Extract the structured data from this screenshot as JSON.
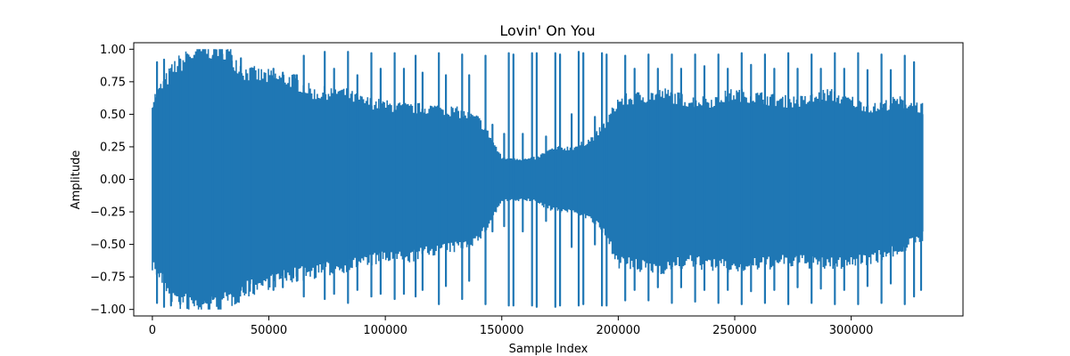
{
  "chart_data": {
    "type": "line",
    "title": "Lovin' On You",
    "xlabel": "Sample Index",
    "ylabel": "Amplitude",
    "xlim": [
      -8000,
      348000
    ],
    "ylim": [
      -1.05,
      1.05
    ],
    "x_ticks": [
      0,
      50000,
      100000,
      150000,
      200000,
      250000,
      300000
    ],
    "x_tick_labels": [
      "0",
      "50000",
      "100000",
      "150000",
      "200000",
      "250000",
      "300000"
    ],
    "y_ticks": [
      1.0,
      0.75,
      0.5,
      0.25,
      0.0,
      -0.25,
      -0.5,
      -0.75,
      -1.0
    ],
    "y_tick_labels": [
      "1.00",
      "0.75",
      "0.50",
      "0.25",
      "0.00",
      "−0.25",
      "−0.50",
      "−0.75",
      "−1.00"
    ],
    "grid": false,
    "series_color": "#1f77b4",
    "series": [
      {
        "x": [
          0,
          10000,
          20000,
          30000,
          40000,
          50000,
          60000,
          70000,
          80000,
          90000,
          100000,
          110000,
          120000,
          130000,
          140000,
          145000,
          150000,
          155000,
          160000,
          165000,
          170000,
          175000,
          180000,
          185000,
          190000,
          195000,
          200000,
          210000,
          220000,
          230000,
          240000,
          250000,
          260000,
          270000,
          280000,
          290000,
          300000,
          310000,
          320000,
          331000
        ],
        "upper": [
          0.55,
          0.8,
          0.9,
          0.93,
          0.75,
          0.72,
          0.7,
          0.6,
          0.62,
          0.55,
          0.52,
          0.5,
          0.5,
          0.48,
          0.42,
          0.3,
          0.15,
          0.15,
          0.14,
          0.15,
          0.2,
          0.22,
          0.22,
          0.25,
          0.3,
          0.4,
          0.55,
          0.58,
          0.6,
          0.55,
          0.55,
          0.6,
          0.58,
          0.55,
          0.55,
          0.6,
          0.55,
          0.5,
          0.55,
          0.5
        ],
        "lower": [
          -0.6,
          -0.85,
          -0.9,
          -0.88,
          -0.78,
          -0.72,
          -0.68,
          -0.65,
          -0.62,
          -0.58,
          -0.55,
          -0.55,
          -0.5,
          -0.48,
          -0.42,
          -0.3,
          -0.15,
          -0.15,
          -0.14,
          -0.16,
          -0.2,
          -0.22,
          -0.22,
          -0.25,
          -0.3,
          -0.4,
          -0.58,
          -0.62,
          -0.62,
          -0.58,
          -0.6,
          -0.62,
          -0.6,
          -0.58,
          -0.58,
          -0.6,
          -0.58,
          -0.55,
          -0.5,
          -0.4
        ],
        "peaks": [
          [
            2000,
            0.9,
            -0.95
          ],
          [
            5000,
            0.92,
            -0.98
          ],
          [
            8000,
            0.85,
            -0.97
          ],
          [
            12000,
            0.92,
            -0.96
          ],
          [
            15000,
            0.96,
            -0.99
          ],
          [
            18000,
            0.95,
            -0.93
          ],
          [
            22000,
            0.97,
            -0.95
          ],
          [
            26000,
            0.95,
            -0.92
          ],
          [
            30000,
            0.96,
            -0.9
          ],
          [
            34000,
            0.95,
            -0.88
          ],
          [
            38000,
            0.93,
            -0.85
          ],
          [
            42000,
            0.85,
            -0.8
          ],
          [
            52000,
            0.85,
            -0.85
          ],
          [
            56000,
            0.82,
            -0.83
          ],
          [
            62000,
            0.8,
            -0.78
          ],
          [
            65000,
            0.95,
            -0.9
          ],
          [
            74000,
            0.98,
            -0.92
          ],
          [
            78000,
            0.85,
            -0.88
          ],
          [
            84000,
            0.98,
            -0.95
          ],
          [
            88000,
            0.8,
            -0.85
          ],
          [
            94000,
            0.97,
            -0.9
          ],
          [
            98000,
            0.85,
            -0.88
          ],
          [
            104000,
            0.97,
            -0.92
          ],
          [
            108000,
            0.85,
            -0.88
          ],
          [
            113000,
            0.95,
            -0.9
          ],
          [
            116000,
            0.82,
            -0.85
          ],
          [
            123000,
            0.97,
            -0.96
          ],
          [
            126000,
            0.8,
            -0.82
          ],
          [
            133000,
            0.96,
            -0.92
          ],
          [
            136000,
            0.8,
            -0.78
          ],
          [
            143000,
            0.95,
            -0.96
          ],
          [
            146000,
            0.42,
            -0.4
          ],
          [
            151000,
            0.35,
            -0.36
          ],
          [
            153000,
            0.97,
            -0.97
          ],
          [
            155000,
            0.96,
            -0.97
          ],
          [
            159000,
            0.35,
            -0.4
          ],
          [
            163000,
            0.97,
            -0.97
          ],
          [
            165000,
            0.97,
            -0.98
          ],
          [
            169000,
            0.33,
            -0.32
          ],
          [
            173000,
            0.97,
            -0.98
          ],
          [
            175000,
            0.96,
            -0.97
          ],
          [
            180000,
            0.5,
            -0.52
          ],
          [
            183000,
            0.98,
            -0.97
          ],
          [
            185000,
            0.97,
            -0.96
          ],
          [
            190000,
            0.48,
            -0.5
          ],
          [
            193000,
            0.97,
            -0.97
          ],
          [
            195000,
            0.96,
            -0.97
          ],
          [
            203000,
            0.95,
            -0.93
          ],
          [
            207000,
            0.85,
            -0.85
          ],
          [
            213000,
            0.96,
            -0.93
          ],
          [
            217000,
            0.85,
            -0.83
          ],
          [
            223000,
            0.96,
            -0.95
          ],
          [
            227000,
            0.85,
            -0.83
          ],
          [
            233000,
            0.96,
            -0.94
          ],
          [
            237000,
            0.87,
            -0.85
          ],
          [
            243000,
            0.96,
            -0.95
          ],
          [
            247000,
            0.85,
            -0.85
          ],
          [
            253000,
            0.97,
            -0.96
          ],
          [
            257000,
            0.88,
            -0.86
          ],
          [
            263000,
            0.96,
            -0.95
          ],
          [
            267000,
            0.85,
            -0.85
          ],
          [
            273000,
            0.97,
            -0.96
          ],
          [
            277000,
            0.85,
            -0.83
          ],
          [
            283000,
            0.96,
            -0.95
          ],
          [
            287000,
            0.85,
            -0.84
          ],
          [
            293000,
            0.97,
            -0.96
          ],
          [
            297000,
            0.85,
            -0.85
          ],
          [
            303000,
            0.97,
            -0.96
          ],
          [
            307000,
            0.84,
            -0.82
          ],
          [
            313000,
            0.96,
            -0.95
          ],
          [
            317000,
            0.84,
            -0.8
          ],
          [
            323000,
            0.95,
            -0.96
          ],
          [
            327000,
            0.9,
            -0.9
          ],
          [
            330000,
            0.5,
            -0.85
          ]
        ]
      }
    ]
  }
}
